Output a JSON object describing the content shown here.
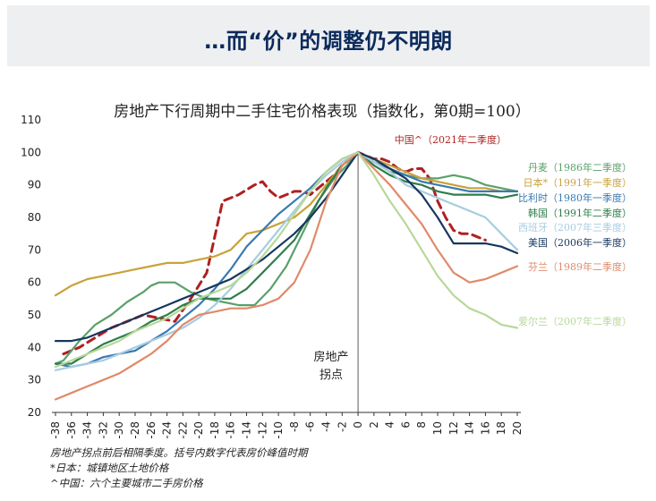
{
  "header": {
    "title": "…而“价”的调整仍不明朗"
  },
  "notes": [
    "房地产拐点前后相隔季度。括号内数字代表房价峰值时期",
    "*日本：城镇地区土地价格",
    "^中国：六个主要城市二手房价格"
  ],
  "chart_data": {
    "type": "line",
    "title": "房地产下行周期中二手住宅价格表现（指数化，第0期=100）",
    "xlabel": "",
    "ylabel": "",
    "xlim": [
      -38,
      20
    ],
    "ylim": [
      20,
      110
    ],
    "x_ticks": [
      -38,
      -36,
      -34,
      -32,
      -30,
      -28,
      -26,
      -24,
      -22,
      -20,
      -18,
      -16,
      -14,
      -12,
      -10,
      -8,
      -6,
      -4,
      -2,
      0,
      2,
      4,
      6,
      8,
      10,
      12,
      14,
      16,
      18,
      20
    ],
    "y_ticks": [
      20,
      30,
      40,
      50,
      60,
      70,
      80,
      90,
      100,
      110
    ],
    "annotations": [
      {
        "text_lines": [
          "房地产",
          "拐点"
        ],
        "x": 0,
        "y": 36
      }
    ],
    "series": [
      {
        "name": "中国^（2021年二季度）",
        "color": "#b02020",
        "dashed": true,
        "label_pos": "top",
        "x": [
          -37,
          -35,
          -33,
          -31,
          -29,
          -27,
          -25,
          -23,
          -21,
          -19,
          -17,
          -15,
          -13,
          -12,
          -11,
          -10,
          -9,
          -8,
          -7,
          -6,
          -5,
          -4,
          -3,
          -2,
          -1,
          0,
          1,
          2,
          3,
          4,
          5,
          6,
          7,
          8,
          9,
          10,
          11,
          12,
          13,
          14,
          15,
          16
        ],
        "values": [
          38,
          40,
          43,
          46,
          48,
          50,
          49,
          48,
          55,
          63,
          85,
          87,
          90,
          91,
          88,
          86,
          87,
          88,
          88,
          87,
          89,
          91,
          93,
          96,
          98,
          100,
          99,
          98,
          98,
          97,
          95,
          94,
          95,
          95,
          92,
          85,
          80,
          76,
          75,
          75,
          74,
          73
        ]
      },
      {
        "name": "丹麦（1986年二季度）",
        "color": "#5aa06a",
        "dashed": false,
        "label_pos": "right",
        "x": [
          -38,
          -37,
          -35,
          -33,
          -31,
          -29,
          -27,
          -26,
          -25,
          -23,
          -21,
          -19,
          -17,
          -15,
          -13,
          -11,
          -9,
          -7,
          -5,
          -3,
          -1,
          0,
          2,
          4,
          6,
          8,
          10,
          12,
          14,
          16,
          18,
          20
        ],
        "values": [
          35,
          36,
          42,
          47,
          50,
          54,
          57,
          59,
          60,
          60,
          57,
          55,
          54,
          53,
          53,
          58,
          65,
          75,
          85,
          92,
          97,
          100,
          97,
          94,
          93,
          92,
          92,
          93,
          92,
          90,
          89,
          88
        ]
      },
      {
        "name": "日本*（1991年一季度）",
        "color": "#c9a23a",
        "dashed": false,
        "label_pos": "right",
        "x": [
          -38,
          -36,
          -34,
          -32,
          -30,
          -28,
          -26,
          -24,
          -22,
          -20,
          -18,
          -16,
          -14,
          -12,
          -10,
          -8,
          -6,
          -4,
          -2,
          0,
          2,
          4,
          6,
          8,
          10,
          12,
          14,
          16,
          18,
          20
        ],
        "values": [
          56,
          59,
          61,
          62,
          63,
          64,
          65,
          66,
          66,
          67,
          68,
          70,
          75,
          76,
          78,
          80,
          84,
          90,
          96,
          100,
          98,
          96,
          94,
          92,
          91,
          90,
          89,
          89,
          88,
          88
        ]
      },
      {
        "name": "比利时（1980年一季度）",
        "color": "#3a7ab0",
        "dashed": false,
        "label_pos": "right",
        "x": [
          -38,
          -36,
          -34,
          -32,
          -30,
          -28,
          -26,
          -24,
          -22,
          -20,
          -18,
          -16,
          -14,
          -12,
          -10,
          -8,
          -6,
          -4,
          -2,
          0,
          2,
          4,
          6,
          8,
          10,
          12,
          14,
          16,
          18,
          20
        ],
        "values": [
          35,
          34,
          35,
          37,
          38,
          39,
          42,
          45,
          49,
          53,
          58,
          64,
          71,
          76,
          81,
          85,
          89,
          94,
          98,
          100,
          97,
          95,
          93,
          91,
          90,
          89,
          88,
          88,
          88,
          88
        ]
      },
      {
        "name": "韩国（1991年二季度）",
        "color": "#2e7d4a",
        "dashed": false,
        "label_pos": "right",
        "x": [
          -38,
          -36,
          -34,
          -32,
          -30,
          -28,
          -26,
          -24,
          -22,
          -20,
          -18,
          -16,
          -14,
          -12,
          -10,
          -8,
          -6,
          -4,
          -2,
          0,
          2,
          4,
          6,
          8,
          10,
          12,
          14,
          16,
          18,
          20
        ],
        "values": [
          35,
          35,
          38,
          41,
          43,
          45,
          48,
          50,
          53,
          55,
          55,
          55,
          58,
          63,
          68,
          73,
          81,
          89,
          96,
          100,
          96,
          93,
          91,
          90,
          88,
          87,
          87,
          87,
          86,
          87
        ]
      },
      {
        "name": "西班牙（2007年三季度）",
        "color": "#a8cde0",
        "dashed": false,
        "label_pos": "right",
        "x": [
          -38,
          -36,
          -34,
          -32,
          -30,
          -28,
          -26,
          -24,
          -22,
          -20,
          -18,
          -16,
          -14,
          -12,
          -10,
          -8,
          -6,
          -4,
          -2,
          0,
          2,
          4,
          6,
          8,
          10,
          12,
          14,
          16,
          18,
          20
        ],
        "values": [
          33,
          34,
          35,
          36,
          38,
          40,
          42,
          44,
          46,
          49,
          53,
          58,
          64,
          70,
          76,
          82,
          88,
          93,
          97,
          100,
          97,
          94,
          90,
          88,
          86,
          84,
          82,
          80,
          75,
          70
        ]
      },
      {
        "name": "美国（2006年一季度）",
        "color": "#17375e",
        "dashed": false,
        "label_pos": "right",
        "x": [
          -38,
          -36,
          -34,
          -32,
          -30,
          -28,
          -26,
          -24,
          -22,
          -20,
          -18,
          -16,
          -14,
          -12,
          -10,
          -8,
          -6,
          -4,
          -2,
          0,
          2,
          4,
          6,
          8,
          10,
          12,
          14,
          16,
          18,
          20
        ],
        "values": [
          42,
          42,
          43,
          45,
          47,
          49,
          51,
          53,
          55,
          57,
          59,
          61,
          64,
          67,
          71,
          75,
          80,
          86,
          93,
          100,
          98,
          95,
          92,
          87,
          80,
          72,
          72,
          72,
          71,
          69
        ]
      },
      {
        "name": "芬兰（1989年二季度）",
        "color": "#e08a6a",
        "dashed": false,
        "label_pos": "right",
        "x": [
          -38,
          -36,
          -34,
          -32,
          -30,
          -28,
          -26,
          -24,
          -22,
          -20,
          -18,
          -16,
          -14,
          -12,
          -10,
          -8,
          -6,
          -4,
          -2,
          0,
          2,
          4,
          6,
          8,
          10,
          12,
          14,
          16,
          18,
          20
        ],
        "values": [
          24,
          26,
          28,
          30,
          32,
          35,
          38,
          42,
          47,
          50,
          51,
          52,
          52,
          53,
          55,
          60,
          70,
          85,
          96,
          100,
          95,
          90,
          84,
          78,
          70,
          63,
          60,
          61,
          63,
          65
        ]
      },
      {
        "name": "爱尔兰（2007年二季度）",
        "color": "#b8d89a",
        "dashed": false,
        "label_pos": "right",
        "x": [
          -38,
          -36,
          -34,
          -32,
          -30,
          -28,
          -26,
          -24,
          -22,
          -20,
          -18,
          -16,
          -14,
          -12,
          -10,
          -8,
          -6,
          -4,
          -2,
          0,
          2,
          4,
          6,
          8,
          10,
          12,
          14,
          16,
          18,
          20
        ],
        "values": [
          34,
          36,
          38,
          40,
          42,
          45,
          47,
          49,
          52,
          55,
          57,
          59,
          63,
          68,
          74,
          81,
          88,
          94,
          98,
          100,
          93,
          85,
          78,
          70,
          62,
          56,
          52,
          50,
          47,
          46
        ]
      }
    ]
  }
}
